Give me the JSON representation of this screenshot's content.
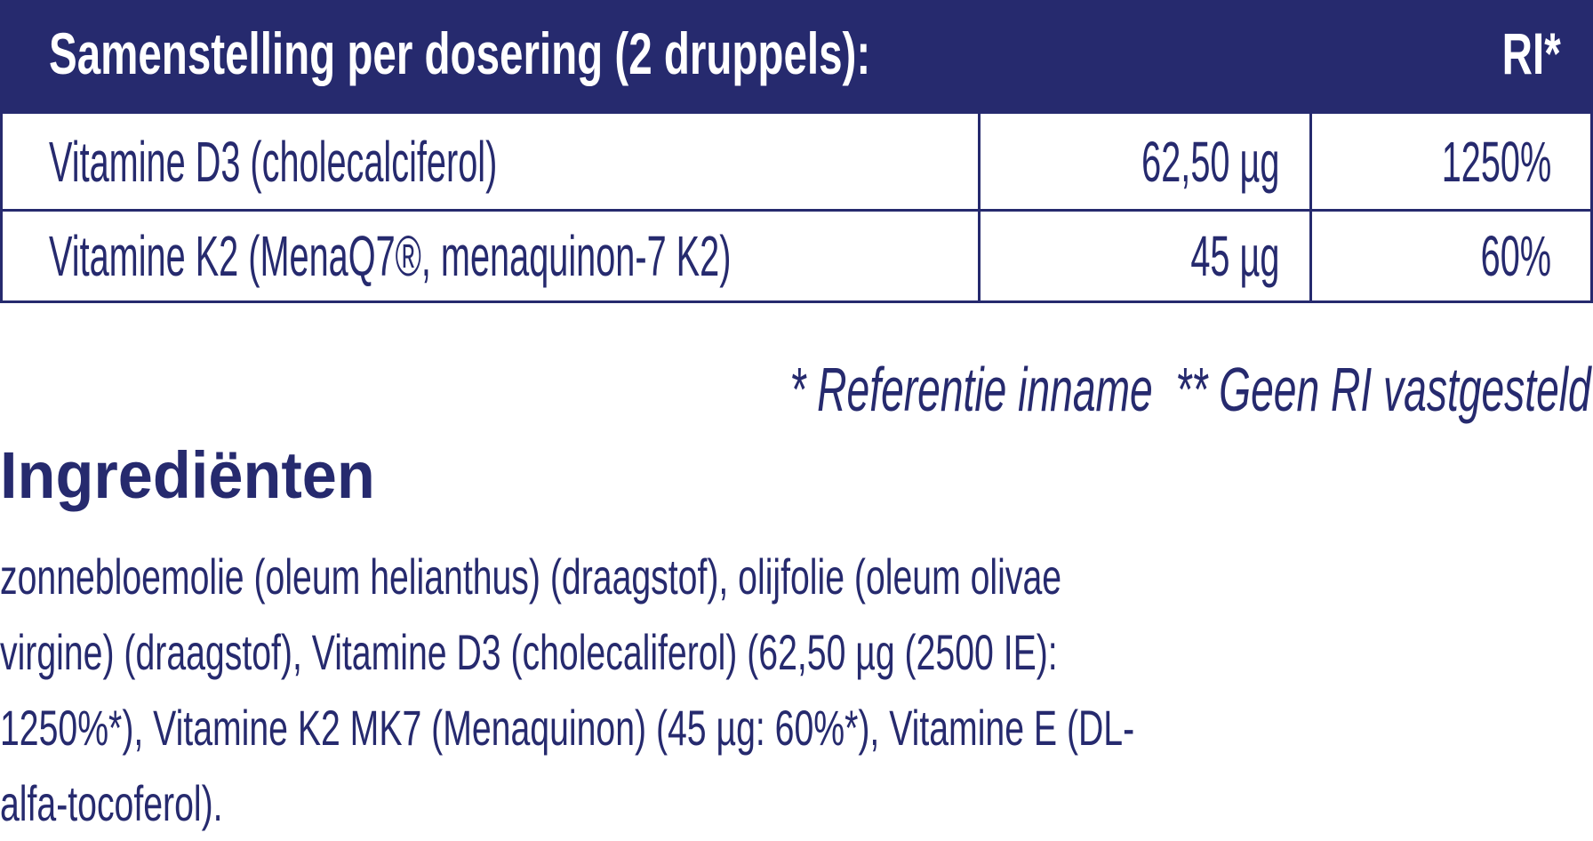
{
  "table": {
    "header": {
      "title": "Samenstelling per dosering (2 druppels):",
      "ri": "RI*"
    },
    "rows": [
      {
        "name": "Vitamine D3 (cholecalciferol)",
        "amount": "62,50 µg",
        "ri": "1250%"
      },
      {
        "name": "Vitamine K2 (MenaQ7®, menaquinon-7 K2)",
        "amount": "45 µg",
        "ri": "60%"
      }
    ]
  },
  "footnote": "* Referentie inname  ** Geen RI vastgesteld",
  "ingredients": {
    "title": "Ingrediënten",
    "lines": [
      "zonnebloemolie (oleum helianthus) (draagstof), olijfolie (oleum olivae",
      "virgine) (draagstof), Vitamine D3 (cholecaliferol) (62,50 µg (2500 IE):",
      "1250%*), Vitamine K2 MK7 (Menaquinon) (45 µg: 60%*), Vitamine E (DL-",
      "alfa-tocoferol)."
    ]
  },
  "colors": {
    "brand": "#262a6e",
    "header_text": "#ffffff"
  }
}
